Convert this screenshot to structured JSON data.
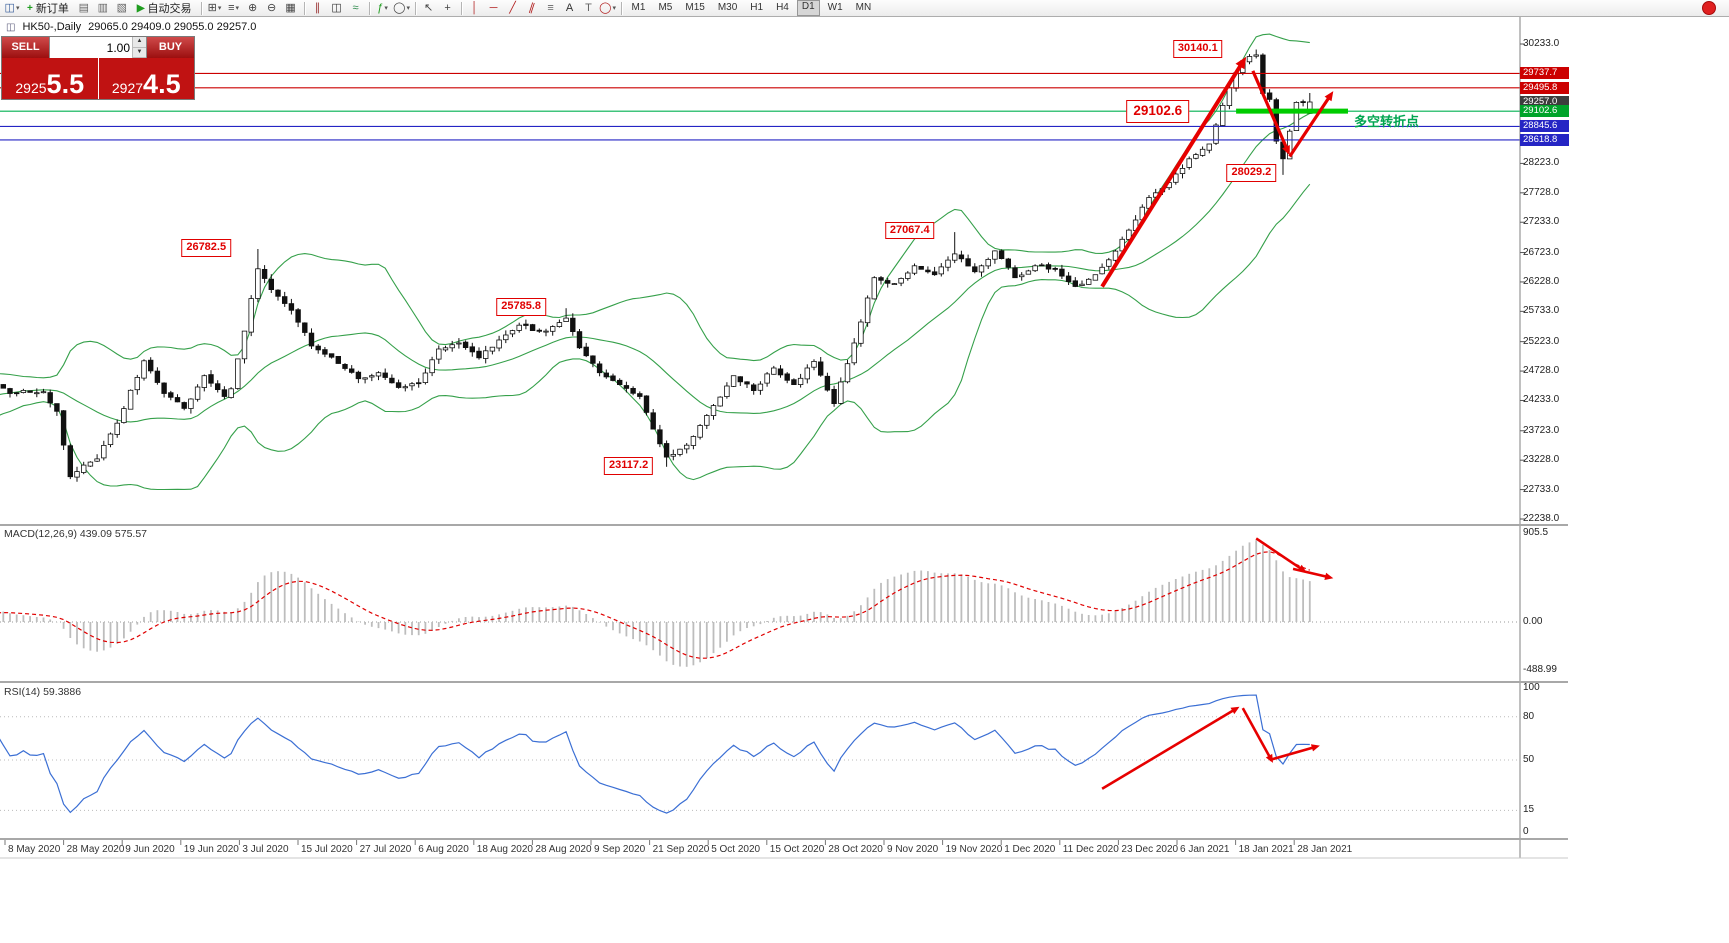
{
  "toolbar": {
    "items": [
      {
        "type": "icon",
        "name": "chart-window-icon",
        "glyph": "◫",
        "color": "#355c9a",
        "caret": true
      },
      {
        "type": "button",
        "name": "new-order-button",
        "glyph": "+",
        "color": "#1f9d1f",
        "label": "新订单"
      },
      {
        "type": "icon",
        "name": "market-watch-icon",
        "glyph": "▤",
        "color": "#666666"
      },
      {
        "type": "icon",
        "name": "data-window-icon",
        "glyph": "▥",
        "color": "#666666"
      },
      {
        "type": "icon",
        "name": "navigator-icon",
        "glyph": "▧",
        "color": "#666666"
      },
      {
        "type": "button",
        "name": "autotrade-button",
        "glyph": "▶",
        "color": "#1f9d1f",
        "label": "自动交易"
      },
      {
        "type": "sep"
      },
      {
        "type": "icon",
        "name": "new-chart-icon",
        "glyph": "⊞",
        "color": "#444444",
        "caret": true
      },
      {
        "type": "icon",
        "name": "profiles-icon",
        "glyph": "≡",
        "color": "#444444",
        "caret": true
      },
      {
        "type": "icon",
        "name": "zoom-in-icon",
        "glyph": "⊕",
        "color": "#444444"
      },
      {
        "type": "icon",
        "name": "zoom-out-icon",
        "glyph": "⊖",
        "color": "#444444"
      },
      {
        "type": "icon",
        "name": "tile-windows-icon",
        "glyph": "▦",
        "color": "#444444"
      },
      {
        "type": "sep"
      },
      {
        "type": "icon",
        "name": "bar-chart-icon",
        "glyph": "∥",
        "color": "#9a3333"
      },
      {
        "type": "icon",
        "name": "candlestick-chart-icon",
        "glyph": "◫",
        "color": "#333333"
      },
      {
        "type": "icon",
        "name": "line-chart-icon",
        "glyph": "≈",
        "color": "#2a8a4a"
      },
      {
        "type": "sep"
      },
      {
        "type": "icon",
        "name": "indicators-icon",
        "glyph": "ƒ",
        "color": "#1f9d1f",
        "caret": true
      },
      {
        "type": "icon",
        "name": "objects-icon",
        "glyph": "◯",
        "color": "#444444",
        "caret": true
      },
      {
        "type": "sep"
      },
      {
        "type": "icon",
        "name": "cursor-icon",
        "glyph": "↖",
        "color": "#444444"
      },
      {
        "type": "icon",
        "name": "crosshair-icon",
        "glyph": "+",
        "color": "#444444"
      },
      {
        "type": "sep"
      },
      {
        "type": "icon",
        "name": "vertical-line-icon",
        "glyph": "│",
        "color": "#b22222"
      },
      {
        "type": "icon",
        "name": "horizontal-line-icon",
        "glyph": "─",
        "color": "#b22222"
      },
      {
        "type": "icon",
        "name": "trendline-icon",
        "glyph": "╱",
        "color": "#b22222"
      },
      {
        "type": "icon",
        "name": "channel-icon",
        "glyph": "∥",
        "color": "#b22222",
        "tilt": true
      },
      {
        "type": "icon",
        "name": "fibonacci-icon",
        "glyph": "≡",
        "color": "#666666"
      },
      {
        "type": "icon",
        "name": "text-icon",
        "glyph": "A",
        "color": "#333333"
      },
      {
        "type": "icon",
        "name": "label-icon",
        "glyph": "T",
        "color": "#666666"
      },
      {
        "type": "icon",
        "name": "shapes-icon",
        "glyph": "◯",
        "color": "#b22222",
        "caret": true
      },
      {
        "type": "sep"
      },
      {
        "type": "tf",
        "label": "M1"
      },
      {
        "type": "tf",
        "label": "M5"
      },
      {
        "type": "tf",
        "label": "M15"
      },
      {
        "type": "tf",
        "label": "M30"
      },
      {
        "type": "tf",
        "label": "H1"
      },
      {
        "type": "tf",
        "label": "H4"
      },
      {
        "type": "tf",
        "label": "D1",
        "active": true
      },
      {
        "type": "tf",
        "label": "W1"
      },
      {
        "type": "tf",
        "label": "MN"
      }
    ]
  },
  "chart_header": {
    "symbol_title": "HK50-,Daily",
    "ohlc": "29065.0 29409.0 29055.0 29257.0"
  },
  "order_panel": {
    "sell_label": "SELL",
    "buy_label": "BUY",
    "volume": "1.00",
    "sell_price_small": "2925",
    "sell_price_big": "5.5",
    "buy_price_small": "2927",
    "buy_price_big": "4.5"
  },
  "price_axis": {
    "regular": [
      "30233.0",
      "28223.0",
      "27728.0",
      "27233.0",
      "26723.0",
      "26228.0",
      "25733.0",
      "25223.0",
      "24728.0",
      "24233.0",
      "23723.0",
      "23228.0",
      "22733.0",
      "22238.0"
    ],
    "highlight": [
      {
        "value": "29737.7",
        "color": "#cc0000"
      },
      {
        "value": "29495.8",
        "color": "#cc0000"
      },
      {
        "value": "29257.0",
        "color": "#3d3d3d"
      },
      {
        "value": "29102.6",
        "color": "#00a42a"
      },
      {
        "value": "28845.6",
        "color": "#2525c4"
      },
      {
        "value": "28618.8",
        "color": "#2525c4"
      }
    ]
  },
  "macd_panel": {
    "label": "MACD(12,26,9) 439.09 575.57",
    "axis": [
      {
        "v": 905.5,
        "text": "905.5"
      },
      {
        "v": 0,
        "text": "0.00"
      },
      {
        "v": -488.99,
        "text": "-488.99"
      }
    ]
  },
  "rsi_panel": {
    "label": "RSI(14) 59.3886",
    "axis": [
      {
        "v": 100,
        "text": "100"
      },
      {
        "v": 80,
        "text": "80"
      },
      {
        "v": 50,
        "text": "50"
      },
      {
        "v": 15,
        "text": "15"
      },
      {
        "v": 0,
        "text": "0"
      }
    ]
  },
  "time_axis": [
    "8 May 2020",
    "28 May 2020",
    "9 Jun 2020",
    "19 Jun 2020",
    "3 Jul 2020",
    "15 Jul 2020",
    "27 Jul 2020",
    "6 Aug 2020",
    "18 Aug 2020",
    "28 Aug 2020",
    "9 Sep 2020",
    "21 Sep 2020",
    "5 Oct 2020",
    "15 Oct 2020",
    "28 Oct 2020",
    "9 Nov 2020",
    "19 Nov 2020",
    "1 Dec 2020",
    "11 Dec 2020",
    "23 Dec 2020",
    "6 Jan 2021",
    "18 Jan 2021",
    "28 Jan 2021"
  ],
  "chart_data": {
    "type": "candlestick",
    "symbol": "HK50",
    "timeframe": "Daily",
    "y_axis_range": [
      22238.0,
      30233.0
    ],
    "last_candle": [
      29065.0,
      29409.0,
      29055.0,
      29257.0
    ],
    "indicators": {
      "bollinger": [
        20,
        2
      ],
      "macd": [
        12,
        26,
        9
      ],
      "rsi": [
        14
      ]
    },
    "macd_current": [
      439.09,
      575.57
    ],
    "rsi_current": 59.3886,
    "noise": 85,
    "colors": {
      "bands": "#35a04a",
      "arrow": "#e60000",
      "rsi": "#3b6fd4",
      "histogram": "#bdbdbd",
      "signal": "#e00000",
      "level_green": "#00b050"
    },
    "waypoints": [
      [
        -40,
        23900
      ],
      [
        -30,
        24450
      ],
      [
        -22,
        24000
      ],
      [
        -10,
        24350
      ],
      [
        -3,
        24600
      ],
      [
        0,
        24350
      ],
      [
        5,
        24380
      ],
      [
        7,
        24050
      ],
      [
        9,
        22950
      ],
      [
        13,
        23250
      ],
      [
        16,
        23850
      ],
      [
        20,
        24900
      ],
      [
        23,
        24350
      ],
      [
        26,
        24100
      ],
      [
        29,
        24650
      ],
      [
        32,
        24300
      ],
      [
        33,
        24430
      ],
      [
        35,
        25400
      ],
      [
        37,
        26450
      ],
      [
        39,
        26100
      ],
      [
        42,
        25750
      ],
      [
        45,
        25150
      ],
      [
        48,
        24960
      ],
      [
        52,
        24600
      ],
      [
        55,
        24700
      ],
      [
        58,
        24450
      ],
      [
        61,
        24530
      ],
      [
        64,
        25100
      ],
      [
        67,
        25200
      ],
      [
        70,
        24950
      ],
      [
        73,
        25250
      ],
      [
        76,
        25500
      ],
      [
        80,
        25400
      ],
      [
        83,
        25620
      ],
      [
        85,
        25120
      ],
      [
        88,
        24700
      ],
      [
        91,
        24500
      ],
      [
        94,
        24300
      ],
      [
        96,
        23750
      ],
      [
        98,
        23280
      ],
      [
        101,
        23480
      ],
      [
        104,
        23980
      ],
      [
        108,
        24650
      ],
      [
        111,
        24400
      ],
      [
        114,
        24780
      ],
      [
        117,
        24500
      ],
      [
        120,
        24890
      ],
      [
        123,
        24180
      ],
      [
        126,
        25200
      ],
      [
        129,
        26300
      ],
      [
        132,
        26200
      ],
      [
        135,
        26500
      ],
      [
        138,
        26350
      ],
      [
        141,
        26700
      ],
      [
        144,
        26400
      ],
      [
        147,
        26750
      ],
      [
        150,
        26300
      ],
      [
        153,
        26500
      ],
      [
        156,
        26450
      ],
      [
        159,
        26150
      ],
      [
        162,
        26350
      ],
      [
        164,
        26600
      ],
      [
        167,
        27100
      ],
      [
        170,
        27650
      ],
      [
        173,
        27900
      ],
      [
        176,
        28300
      ],
      [
        179,
        28550
      ],
      [
        181,
        29200
      ],
      [
        183,
        29750
      ],
      [
        184,
        29950
      ],
      [
        186,
        30050
      ],
      [
        187,
        29400
      ],
      [
        188,
        29300
      ],
      [
        189,
        28600
      ],
      [
        190,
        28300
      ],
      [
        192,
        29250
      ],
      [
        194,
        29257
      ]
    ],
    "forced_extremes": [
      [
        37,
        "high",
        26782.5
      ],
      [
        83,
        "high",
        25785.8
      ],
      [
        98,
        "low",
        23117.2
      ],
      [
        141,
        "high",
        27067.4
      ],
      [
        186,
        "high",
        30140.1
      ],
      [
        190,
        "low",
        28029.2
      ]
    ],
    "levels": [
      {
        "price": 29737.7,
        "color": "#cc0000"
      },
      {
        "price": 29495.8,
        "color": "#cc0000"
      },
      {
        "price": 29102.6,
        "color": "#00b050"
      },
      {
        "price": 28845.6,
        "color": "#2525c4"
      },
      {
        "price": 28618.8,
        "color": "#2525c4"
      }
    ],
    "thick_level": {
      "price": 29102.6,
      "i_from": 183,
      "i_to": 199.7,
      "color": "#00cc00"
    },
    "annotations": [
      {
        "text": "26782.5",
        "i": 33,
        "price": 26800
      },
      {
        "text": "25785.8",
        "i": 80,
        "price": 25800
      },
      {
        "text": "23117.2",
        "i": 96,
        "price": 23130
      },
      {
        "text": "27067.4",
        "i": 138,
        "price": 27090
      },
      {
        "text": "30140.1",
        "i": 181,
        "price": 30150
      },
      {
        "text": "28029.2",
        "i": 189,
        "price": 28060
      },
      {
        "text": "29102.6",
        "i": 176,
        "price": 29102.6,
        "large": true
      }
    ],
    "turning_point_label": {
      "text": "多空转折点",
      "i": 200,
      "price": 28950,
      "color": "#00a550"
    },
    "arrows": {
      "main": [
        [
          163,
          26150,
          184.5,
          30020
        ],
        [
          185.5,
          29780,
          191,
          28360
        ],
        [
          191,
          28340,
          197.5,
          29440
        ]
      ],
      "macd": [
        [
          186,
          850,
          193.5,
          505
        ],
        [
          191.5,
          540,
          197.5,
          445
        ]
      ],
      "rsi": [
        [
          163,
          30,
          183.5,
          87
        ],
        [
          184,
          86,
          188.5,
          48
        ],
        [
          188,
          50,
          195.5,
          60
        ]
      ]
    },
    "rsi_levels": [
      80,
      50,
      15
    ]
  }
}
